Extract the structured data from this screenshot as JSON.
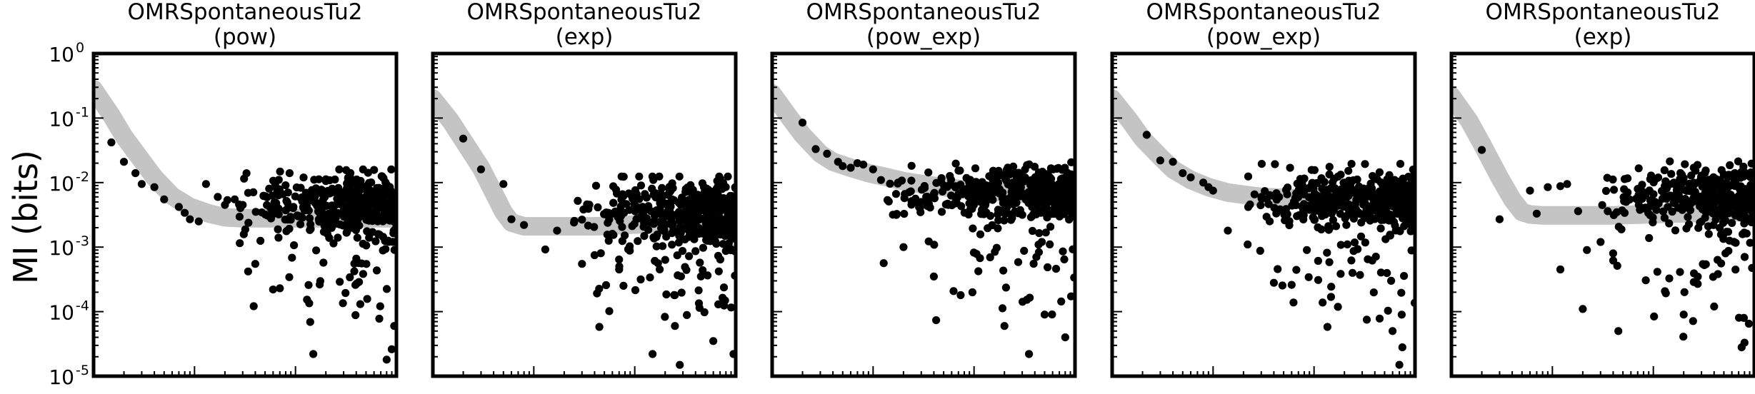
{
  "figure": {
    "ylabel": "MI (bits)",
    "colors": {
      "fit_band": "#c4c4c4",
      "points": "#000000",
      "frame": "#000000"
    }
  },
  "chart_data": [
    {
      "type": "scatter",
      "title": [
        "OMRSpontaneousTu2",
        "(pow)"
      ],
      "xlabel": "",
      "ylabel": "MI (bits)",
      "x_scale": "log",
      "y_scale": "log",
      "xlim": [
        1,
        1000
      ],
      "ylim": [
        1e-05,
        1
      ],
      "yticks": [
        1,
        0.1,
        0.01,
        0.001,
        0.0001,
        1e-05
      ],
      "yticklabels": [
        [
          "10",
          "0"
        ],
        [
          "10",
          "-1"
        ],
        [
          "10",
          "-2"
        ],
        [
          "10",
          "-3"
        ],
        [
          "10",
          "-4"
        ],
        [
          "10",
          "-5"
        ]
      ],
      "fit": {
        "kind": "pow",
        "points": [
          [
            1,
            0.28
          ],
          [
            1.5,
            0.11
          ],
          [
            2,
            0.052
          ],
          [
            3,
            0.022
          ],
          [
            4,
            0.012
          ],
          [
            6,
            0.0062
          ],
          [
            9,
            0.0042
          ],
          [
            14,
            0.0033
          ],
          [
            20,
            0.0029
          ],
          [
            30,
            0.0028
          ],
          [
            50,
            0.0028
          ],
          [
            100,
            0.0028
          ],
          [
            200,
            0.0028
          ],
          [
            400,
            0.0028
          ],
          [
            1000,
            0.0028
          ]
        ]
      },
      "series": [
        {
          "seed": 11,
          "n": 420,
          "level": 0.0045,
          "spread": 0.55,
          "tail": 0.12,
          "xmin": 15,
          "fixed": [
            [
              1.5,
              0.042
            ],
            [
              2,
              0.021
            ],
            [
              2.6,
              0.014
            ],
            [
              3,
              0.0095
            ],
            [
              4,
              0.0085
            ],
            [
              5,
              0.0055
            ],
            [
              7,
              0.0042
            ],
            [
              8,
              0.0034
            ],
            [
              9,
              0.0027
            ],
            [
              11,
              0.0025
            ],
            [
              13,
              0.0095
            ],
            [
              17,
              0.006
            ],
            [
              20,
              0.0045
            ],
            [
              25,
              0.0055
            ],
            [
              30,
              0.0045
            ],
            [
              34,
              0.00042
            ],
            [
              40,
              0.00055
            ],
            [
              60,
              0.00022
            ],
            [
              70,
              0.00023
            ],
            [
              150,
              2.2e-05
            ],
            [
              800,
              1.8e-05
            ],
            [
              950,
              6e-05
            ]
          ]
        }
      ]
    },
    {
      "type": "scatter",
      "title": [
        "OMRSpontaneousTu2",
        "(exp)"
      ],
      "xlabel": "",
      "ylabel": "",
      "x_scale": "log",
      "y_scale": "log",
      "xlim": [
        1,
        1000
      ],
      "ylim": [
        1e-05,
        1
      ],
      "fit": {
        "kind": "exp",
        "points": [
          [
            1,
            0.2
          ],
          [
            1.5,
            0.09
          ],
          [
            2,
            0.045
          ],
          [
            3,
            0.017
          ],
          [
            4,
            0.007
          ],
          [
            5,
            0.0035
          ],
          [
            6,
            0.0024
          ],
          [
            8,
            0.0021
          ],
          [
            12,
            0.0021
          ],
          [
            20,
            0.0021
          ],
          [
            40,
            0.0021
          ],
          [
            80,
            0.0022
          ],
          [
            150,
            0.0023
          ],
          [
            300,
            0.0024
          ],
          [
            1000,
            0.0025
          ]
        ]
      },
      "series": [
        {
          "seed": 23,
          "n": 430,
          "level": 0.0035,
          "spread": 0.6,
          "tail": 0.14,
          "xmin": 22,
          "fixed": [
            [
              2,
              0.048
            ],
            [
              3,
              0.016
            ],
            [
              5,
              0.0095
            ],
            [
              6,
              0.0027
            ],
            [
              8,
              0.0022
            ],
            [
              13,
              0.00092
            ],
            [
              17,
              0.0018
            ],
            [
              25,
              0.0024
            ],
            [
              30,
              0.00055
            ],
            [
              40,
              0.00075
            ],
            [
              70,
              0.00045
            ],
            [
              150,
              2.2e-05
            ],
            [
              250,
              6e-05
            ],
            [
              950,
              2.2e-05
            ],
            [
              600,
              3.5e-05
            ]
          ]
        }
      ]
    },
    {
      "type": "scatter",
      "title": [
        "OMRSpontaneousTu2",
        "(pow_exp)"
      ],
      "xlabel": "",
      "ylabel": "",
      "x_scale": "log",
      "y_scale": "log",
      "xlim": [
        1,
        1000
      ],
      "ylim": [
        1e-05,
        1
      ],
      "fit": {
        "kind": "pow_exp",
        "points": [
          [
            1,
            0.24
          ],
          [
            1.5,
            0.1
          ],
          [
            2,
            0.055
          ],
          [
            3,
            0.028
          ],
          [
            4,
            0.021
          ],
          [
            6,
            0.017
          ],
          [
            9,
            0.014
          ],
          [
            14,
            0.012
          ],
          [
            20,
            0.0105
          ],
          [
            30,
            0.0095
          ],
          [
            50,
            0.0085
          ],
          [
            100,
            0.0075
          ],
          [
            200,
            0.007
          ],
          [
            400,
            0.0065
          ],
          [
            1000,
            0.006
          ]
        ]
      },
      "series": [
        {
          "seed": 37,
          "n": 440,
          "level": 0.007,
          "spread": 0.45,
          "tail": 0.13,
          "xmin": 9,
          "fixed": [
            [
              2,
              0.085
            ],
            [
              2.7,
              0.033
            ],
            [
              3.5,
              0.028
            ],
            [
              4.5,
              0.021
            ],
            [
              5,
              0.018
            ],
            [
              6,
              0.017
            ],
            [
              7,
              0.02
            ],
            [
              8,
              0.019
            ],
            [
              10,
              0.016
            ],
            [
              20,
              0.001
            ],
            [
              40,
              0.00035
            ],
            [
              200,
              6e-05
            ],
            [
              350,
              2.2e-05
            ],
            [
              500,
              9e-05
            ],
            [
              800,
              4e-05
            ]
          ]
        }
      ]
    },
    {
      "type": "scatter",
      "title": [
        "OMRSpontaneousTu2",
        "(pow_exp)"
      ],
      "xlabel": "",
      "ylabel": "",
      "x_scale": "log",
      "y_scale": "log",
      "xlim": [
        1,
        1000
      ],
      "ylim": [
        1e-05,
        1
      ],
      "fit": {
        "kind": "pow_exp",
        "points": [
          [
            1,
            0.2
          ],
          [
            1.5,
            0.09
          ],
          [
            2,
            0.048
          ],
          [
            3,
            0.025
          ],
          [
            4,
            0.016
          ],
          [
            6,
            0.011
          ],
          [
            9,
            0.0085
          ],
          [
            14,
            0.007
          ],
          [
            20,
            0.0065
          ],
          [
            30,
            0.006
          ],
          [
            50,
            0.0058
          ],
          [
            100,
            0.0057
          ],
          [
            200,
            0.0056
          ],
          [
            400,
            0.0056
          ],
          [
            1000,
            0.0056
          ]
        ]
      },
      "series": [
        {
          "seed": 53,
          "n": 460,
          "level": 0.0055,
          "spread": 0.5,
          "tail": 0.15,
          "xmin": 14,
          "fixed": [
            [
              2.2,
              0.055
            ],
            [
              3,
              0.022
            ],
            [
              4,
              0.021
            ],
            [
              5,
              0.014
            ],
            [
              6,
              0.012
            ],
            [
              8,
              0.01
            ],
            [
              9,
              0.0085
            ],
            [
              10,
              0.0075
            ],
            [
              14,
              0.0018
            ],
            [
              22,
              0.0011
            ],
            [
              40,
              0.00028
            ],
            [
              60,
              0.00026
            ],
            [
              700,
              1.5e-05
            ],
            [
              750,
              2.8e-05
            ],
            [
              600,
              5e-05
            ]
          ]
        }
      ]
    },
    {
      "type": "scatter",
      "title": [
        "OMRSpontaneousTu2",
        "(exp)"
      ],
      "xlabel": "",
      "ylabel": "",
      "x_scale": "log",
      "y_scale": "log",
      "xlim": [
        1,
        1000
      ],
      "ylim": [
        1e-05,
        1
      ],
      "fit": {
        "kind": "exp",
        "points": [
          [
            1,
            0.22
          ],
          [
            1.5,
            0.09
          ],
          [
            2,
            0.04
          ],
          [
            3,
            0.012
          ],
          [
            4,
            0.0055
          ],
          [
            5,
            0.0035
          ],
          [
            6,
            0.0032
          ],
          [
            8,
            0.0031
          ],
          [
            12,
            0.0031
          ],
          [
            20,
            0.0031
          ],
          [
            40,
            0.0031
          ],
          [
            80,
            0.0032
          ],
          [
            150,
            0.0033
          ],
          [
            300,
            0.0034
          ],
          [
            1000,
            0.0035
          ]
        ]
      },
      "series": [
        {
          "seed": 71,
          "n": 420,
          "level": 0.006,
          "spread": 0.5,
          "tail": 0.13,
          "xmin": 25,
          "fixed": [
            [
              2,
              0.032
            ],
            [
              3,
              0.0027
            ],
            [
              6,
              0.0075
            ],
            [
              7,
              0.0033
            ],
            [
              9,
              0.0085
            ],
            [
              12,
              0.0088
            ],
            [
              14,
              0.0095
            ],
            [
              18,
              0.0036
            ],
            [
              22,
              0.0009
            ],
            [
              30,
              0.0012
            ],
            [
              40,
              0.0008
            ],
            [
              12,
              0.00045
            ],
            [
              20,
              0.00011
            ],
            [
              45,
              5e-05
            ],
            [
              200,
              9e-05
            ],
            [
              750,
              2.8e-05
            ],
            [
              800,
              3.3e-05
            ],
            [
              400,
              0.00012
            ]
          ]
        }
      ]
    }
  ]
}
